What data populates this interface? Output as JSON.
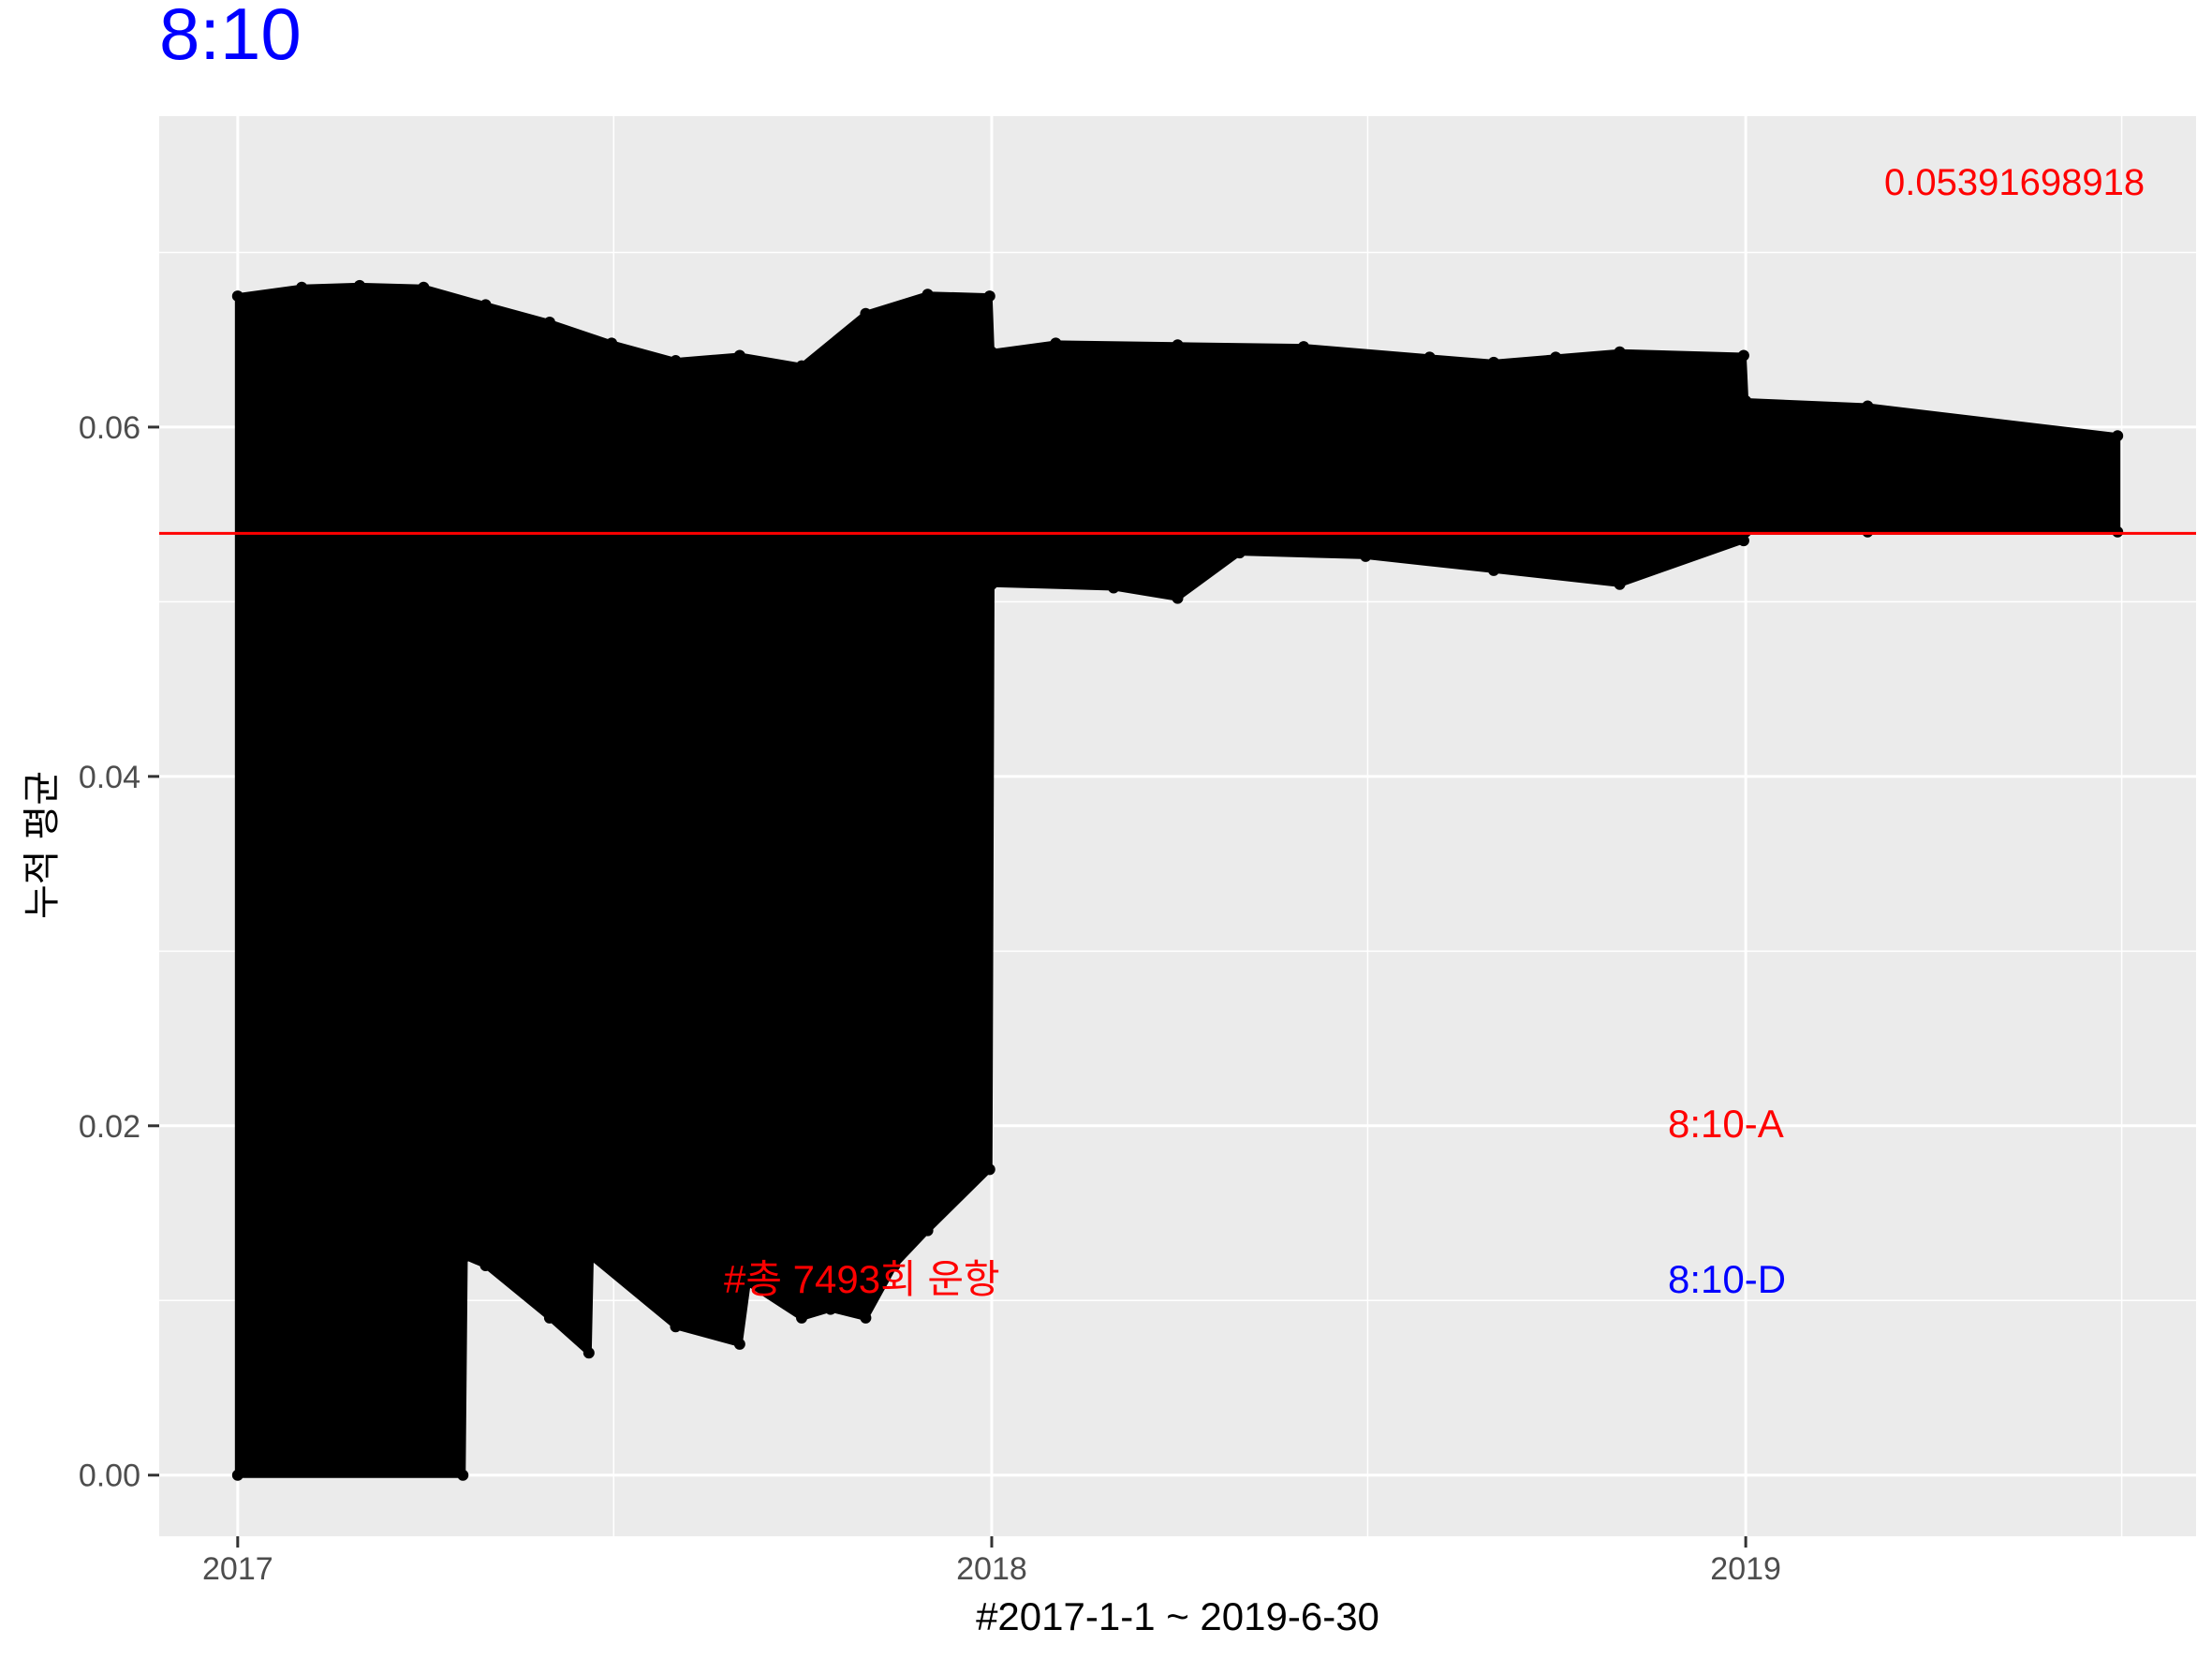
{
  "chart_data": {
    "type": "line",
    "title": "8:10",
    "title_color": "#0000ff",
    "xlabel": "#2017-1-1 ~ 2019-6-30",
    "ylabel": "누적 평균",
    "x_ticks": [
      "2017",
      "2018",
      "2019"
    ],
    "y_ticks": [
      "0.00",
      "0.02",
      "0.04",
      "0.06"
    ],
    "xlim": [
      "2016-11-24",
      "2019-08-07"
    ],
    "ylim": [
      -0.0035,
      0.0778
    ],
    "grid": true,
    "panel_background": "#ebebeb",
    "series_color": "#000000",
    "reference_line": {
      "y": 0.0539169891,
      "color": "#ff0000",
      "label": "0.05391698918"
    },
    "annotations": [
      {
        "text": "#총 7493회 운항",
        "color": "#ff0000"
      },
      {
        "text": "8:10-A",
        "color": "#ff0000"
      },
      {
        "text": "8:10-D",
        "color": "#0000ff"
      }
    ],
    "series": [
      {
        "upper_envelope": [
          [
            "2017-01-01",
            0.0675
          ],
          [
            "2017-02-01",
            0.068
          ],
          [
            "2017-03-01",
            0.0681
          ],
          [
            "2017-04-01",
            0.068
          ],
          [
            "2017-05-01",
            0.067
          ],
          [
            "2017-06-01",
            0.066
          ],
          [
            "2017-07-01",
            0.0648
          ],
          [
            "2017-08-01",
            0.0638
          ],
          [
            "2017-09-01",
            0.0641
          ],
          [
            "2017-10-01",
            0.0635
          ],
          [
            "2017-11-01",
            0.0665
          ],
          [
            "2017-12-01",
            0.0676
          ],
          [
            "2017-12-31",
            0.0675
          ],
          [
            "2018-01-01",
            0.0643
          ],
          [
            "2018-02-01",
            0.0648
          ],
          [
            "2018-04-01",
            0.0647
          ],
          [
            "2018-06-01",
            0.0646
          ],
          [
            "2018-08-01",
            0.064
          ],
          [
            "2018-09-01",
            0.0637
          ],
          [
            "2018-10-01",
            0.064
          ],
          [
            "2018-11-01",
            0.0643
          ],
          [
            "2018-12-31",
            0.0641
          ],
          [
            "2019-01-01",
            0.0615
          ],
          [
            "2019-03-01",
            0.0612
          ],
          [
            "2019-06-30",
            0.0595
          ]
        ],
        "lower_envelope": [
          [
            "2017-01-01",
            0.0
          ],
          [
            "2017-04-20",
            0.0
          ],
          [
            "2017-04-21",
            0.0125
          ],
          [
            "2017-05-01",
            0.012
          ],
          [
            "2017-06-01",
            0.009
          ],
          [
            "2017-06-20",
            0.007
          ],
          [
            "2017-06-21",
            0.0125
          ],
          [
            "2017-08-01",
            0.0085
          ],
          [
            "2017-09-01",
            0.0075
          ],
          [
            "2017-09-05",
            0.011
          ],
          [
            "2017-10-01",
            0.009
          ],
          [
            "2017-10-15",
            0.0095
          ],
          [
            "2017-11-01",
            0.009
          ],
          [
            "2017-11-15",
            0.012
          ],
          [
            "2017-12-01",
            0.014
          ],
          [
            "2017-12-31",
            0.0175
          ],
          [
            "2018-01-01",
            0.051
          ],
          [
            "2018-03-01",
            0.0508
          ],
          [
            "2018-04-01",
            0.0502
          ],
          [
            "2018-05-01",
            0.0528
          ],
          [
            "2018-07-01",
            0.0526
          ],
          [
            "2018-09-01",
            0.0518
          ],
          [
            "2018-11-01",
            0.051
          ],
          [
            "2018-12-31",
            0.0535
          ],
          [
            "2019-01-01",
            0.054
          ],
          [
            "2019-03-01",
            0.054
          ],
          [
            "2019-06-30",
            0.054
          ]
        ]
      }
    ]
  }
}
